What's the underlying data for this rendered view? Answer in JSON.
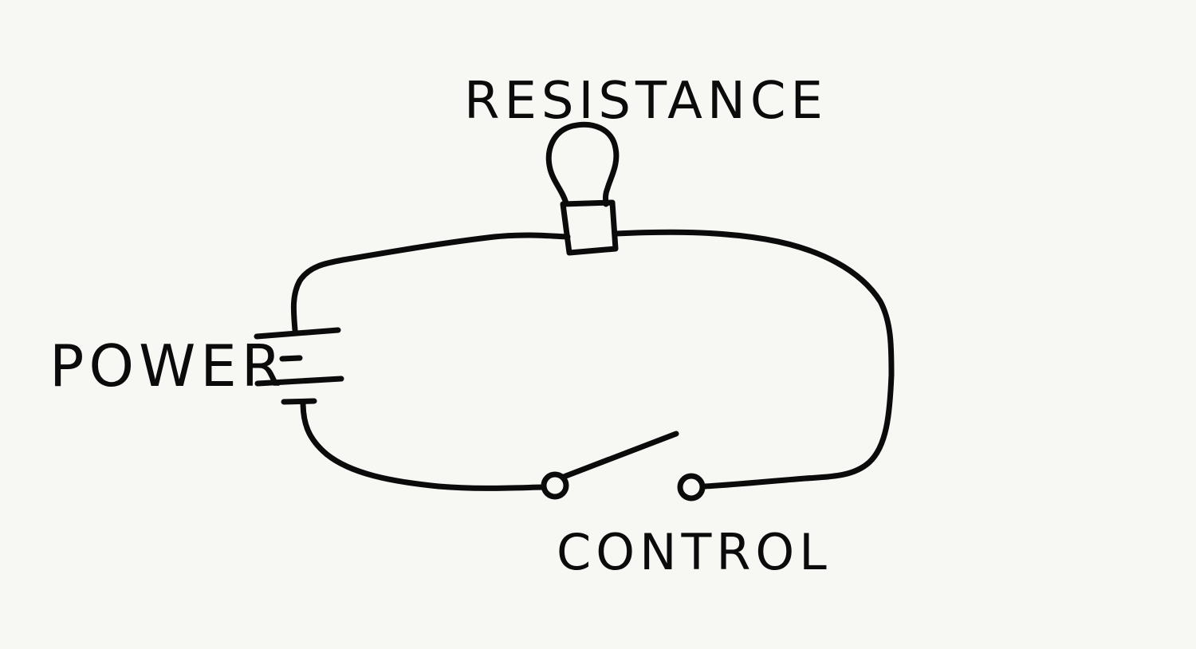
{
  "colors": {
    "background": "#f7f7f3",
    "ink": "#0b0b0b"
  },
  "diagram": {
    "labels": {
      "power": "POWER",
      "resistance": "RESISTANCE",
      "control": "CONTROL"
    },
    "components": {
      "power": "battery-icon",
      "resistance": "light-bulb-icon",
      "control": "open-switch-icon"
    }
  }
}
